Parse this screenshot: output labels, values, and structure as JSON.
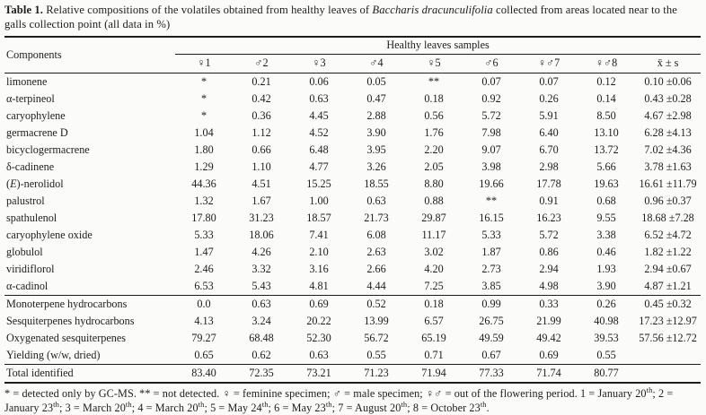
{
  "caption": {
    "parts": [
      {
        "t": "Table 1.",
        "s": "b"
      },
      {
        "t": " Relative compositions of the volatiles obtained from healthy leaves of "
      },
      {
        "t": "Baccharis dracunculifolia",
        "s": "i"
      },
      {
        "t": " collected from areas located near to the galls collection point (all data in %)"
      }
    ]
  },
  "table": {
    "components_header": "Components",
    "group_header": "Healthy leaves samples",
    "sample_headers": [
      "♀1",
      "♂2",
      "♀3",
      "♂4",
      "♀5",
      "♂6",
      "♀♂7",
      "♀♂8",
      "x̄ ± s"
    ],
    "sections": {
      "components": {
        "rows": [
          {
            "label": "limonene",
            "values": [
              "*",
              "0.21",
              "0.06",
              "0.05",
              "**",
              "0.07",
              "0.07",
              "0.12",
              "0.10 ±0.06"
            ]
          },
          {
            "label": "α-terpineol",
            "values": [
              "*",
              "0.42",
              "0.63",
              "0.47",
              "0.18",
              "0.92",
              "0.26",
              "0.14",
              "0.43 ±0.28"
            ]
          },
          {
            "label": "caryophylene",
            "values": [
              "*",
              "0.36",
              "4.45",
              "2.88",
              "0.56",
              "5.72",
              "5.91",
              "8.50",
              "4.67 ±2.98"
            ]
          },
          {
            "label": "germacrene D",
            "values": [
              "1.04",
              "1.12",
              "4.52",
              "3.90",
              "1.76",
              "7.98",
              "6.40",
              "13.10",
              "6.28 ±4.13"
            ]
          },
          {
            "label": "bicyclogermacrene",
            "values": [
              "1.80",
              "0.66",
              "6.48",
              "3.95",
              "2.20",
              "9.07",
              "6.70",
              "13.72",
              "7.02 ±4.36"
            ]
          },
          {
            "label": "δ-cadinene",
            "values": [
              "1.29",
              "1.10",
              "4.77",
              "3.26",
              "2.05",
              "3.98",
              "2.98",
              "5.66",
              "3.78 ±1.63"
            ]
          },
          {
            "label": [
              {
                "t": "("
              },
              {
                "t": "E",
                "s": "i"
              },
              {
                "t": ")-nerolidol"
              }
            ],
            "values": [
              "44.36",
              "4.51",
              "15.25",
              "18.55",
              "8.80",
              "19.66",
              "17.78",
              "19.63",
              "16.61 ±11.79"
            ]
          },
          {
            "label": "palustrol",
            "values": [
              "1.32",
              "1.67",
              "1.00",
              "0.63",
              "0.88",
              "**",
              "0.91",
              "0.68",
              "0.96 ±0.37"
            ]
          },
          {
            "label": "spathulenol",
            "values": [
              "17.80",
              "31.23",
              "18.57",
              "21.73",
              "29.87",
              "16.15",
              "16.23",
              "9.55",
              "18.68 ±7.28"
            ]
          },
          {
            "label": "caryophylene oxide",
            "values": [
              "5.33",
              "18.06",
              "7.41",
              "6.08",
              "11.17",
              "5.33",
              "5.72",
              "3.38",
              "6.52 ±4.72"
            ]
          },
          {
            "label": "globulol",
            "values": [
              "1.47",
              "4.26",
              "2.10",
              "2.63",
              "3.02",
              "1.87",
              "0.86",
              "0.46",
              "1.82 ±1.22"
            ]
          },
          {
            "label": "viridiflorol",
            "values": [
              "2.46",
              "3.32",
              "3.16",
              "2.66",
              "4.20",
              "2.73",
              "2.94",
              "1.93",
              "2.94 ±0.67"
            ]
          },
          {
            "label": "α-cadinol",
            "values": [
              "6.53",
              "5.43",
              "4.81",
              "4.44",
              "7.25",
              "3.85",
              "4.98",
              "3.90",
              "4.87 ±1.21"
            ]
          }
        ]
      },
      "classes": {
        "rows": [
          {
            "label": "Monoterpene hydrocarbons",
            "values": [
              "0.0",
              "0.63",
              "0.69",
              "0.52",
              "0.18",
              "0.99",
              "0.33",
              "0.26",
              "0.45 ±0.32"
            ]
          },
          {
            "label": "Sesquiterpenes hydrocarbons",
            "values": [
              "4.13",
              "3.24",
              "20.22",
              "13.99",
              "6.57",
              "26.75",
              "21.99",
              "40.98",
              "17.23 ±12.97"
            ]
          },
          {
            "label": "Oxygenated sesquiterpenes",
            "values": [
              "79.27",
              "68.48",
              "52.30",
              "56.72",
              "65.19",
              "49.59",
              "49.42",
              "39.53",
              "57.56 ±12.72"
            ]
          },
          {
            "label": "Yielding (w/w, dried)",
            "values": [
              "0.65",
              "0.62",
              "0.63",
              "0.55",
              "0.71",
              "0.67",
              "0.69",
              "0.55",
              ""
            ]
          }
        ]
      },
      "total": {
        "rows": [
          {
            "label": "Total identified",
            "values": [
              "83.40",
              "72.35",
              "73.21",
              "71.23",
              "71.94",
              "77.33",
              "71.74",
              "80.77",
              ""
            ]
          }
        ]
      }
    }
  },
  "footnote": {
    "parts": [
      {
        "t": "* = detected only by GC-MS. ** = not detected. ♀ = feminine specimen; ♂ = male specimen; ♀♂ = out of the flowering period. 1 = January 20"
      },
      {
        "t": "th",
        "s": "sup"
      },
      {
        "t": "; 2 = January 23"
      },
      {
        "t": "th",
        "s": "sup"
      },
      {
        "t": "; 3 = March 20"
      },
      {
        "t": "th",
        "s": "sup"
      },
      {
        "t": "; 4 = March 20"
      },
      {
        "t": "th",
        "s": "sup"
      },
      {
        "t": "; 5 = May 24"
      },
      {
        "t": "th",
        "s": "sup"
      },
      {
        "t": "; 6 = May 23"
      },
      {
        "t": "th",
        "s": "sup"
      },
      {
        "t": "; 7 = August 20"
      },
      {
        "t": "th",
        "s": "sup"
      },
      {
        "t": "; 8 = October 23"
      },
      {
        "t": "th",
        "s": "sup"
      },
      {
        "t": "."
      }
    ]
  },
  "colors": {
    "text": "#1d1d1b",
    "rule": "#1d1d1b",
    "background": "#fbfbfa"
  }
}
